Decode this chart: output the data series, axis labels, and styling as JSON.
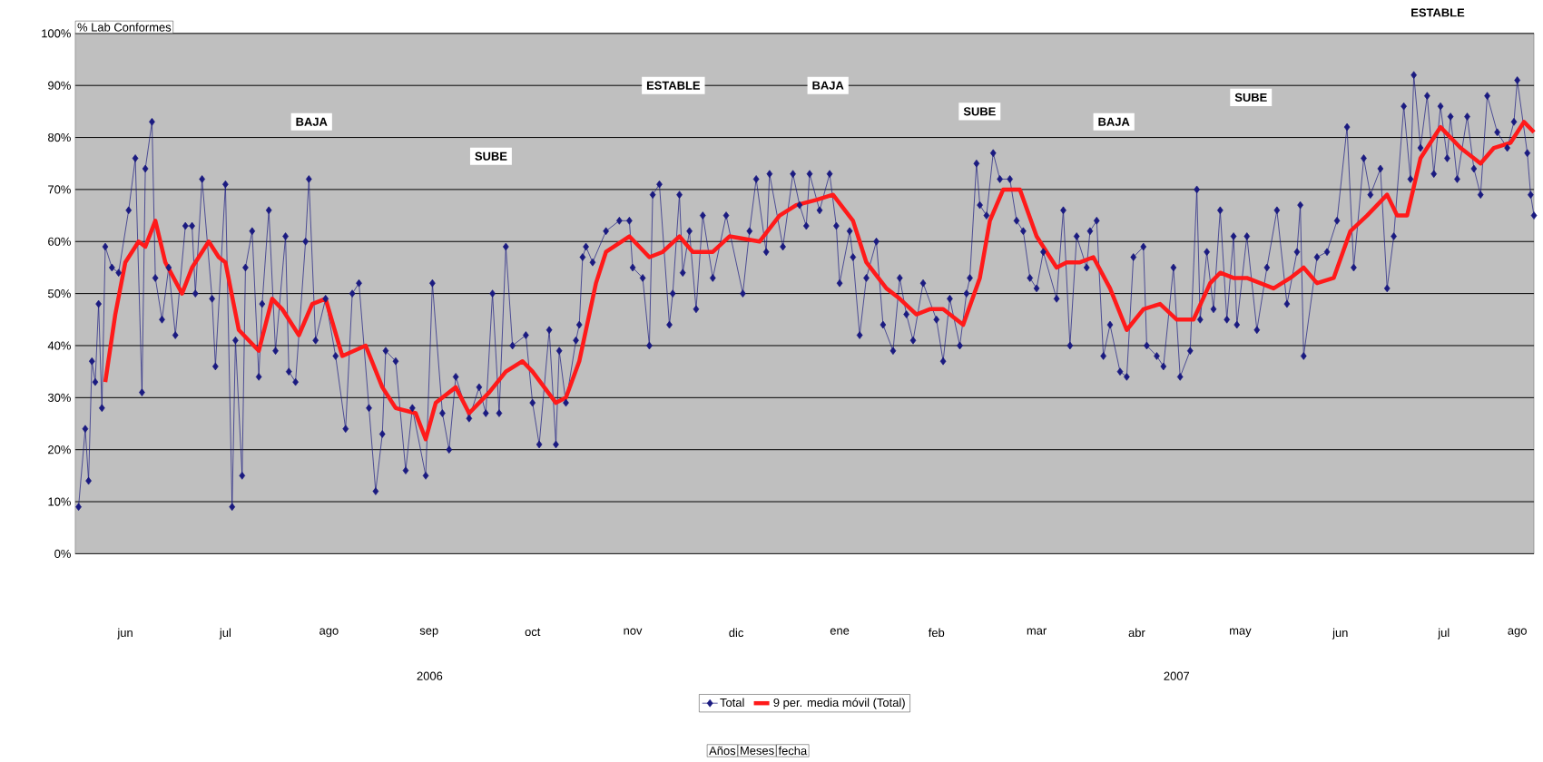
{
  "chart_data": {
    "type": "line",
    "ylabel": "% Lab Conformes",
    "xlim": [
      "2006-06-01",
      "2007-08-12"
    ],
    "xticks": [
      {
        "value": "2006-06-16",
        "label": "jun"
      },
      {
        "value": "2006-07-16",
        "label": "jul"
      },
      {
        "value": "2006-08-16",
        "label": "ago"
      },
      {
        "value": "2006-09-15",
        "label": "sep"
      },
      {
        "value": "2006-10-16",
        "label": "oct"
      },
      {
        "value": "2006-11-15",
        "label": "nov"
      },
      {
        "value": "2006-12-16",
        "label": "dic"
      },
      {
        "value": "2007-01-16",
        "label": "ene"
      },
      {
        "value": "2007-02-14",
        "label": "feb"
      },
      {
        "value": "2007-03-16",
        "label": "mar"
      },
      {
        "value": "2007-04-15",
        "label": "abr"
      },
      {
        "value": "2007-05-16",
        "label": "may"
      },
      {
        "value": "2007-06-15",
        "label": "jun"
      },
      {
        "value": "2007-07-16",
        "label": "jul"
      },
      {
        "value": "2007-08-07",
        "label": "ago"
      }
    ],
    "ylim": [
      0,
      100
    ],
    "yticks": [
      {
        "value": 0,
        "label": "0%"
      },
      {
        "value": 10,
        "label": "10%"
      },
      {
        "value": 20,
        "label": "20%"
      },
      {
        "value": 30,
        "label": "30%"
      },
      {
        "value": 40,
        "label": "40%"
      },
      {
        "value": 50,
        "label": "50%"
      },
      {
        "value": 60,
        "label": "60%"
      },
      {
        "value": 70,
        "label": "70%"
      },
      {
        "value": 80,
        "label": "80%"
      },
      {
        "value": 90,
        "label": "90%"
      },
      {
        "value": 100,
        "label": "100%"
      }
    ],
    "grid": "y",
    "legend": "bottom",
    "series": [
      {
        "name": "Total",
        "color": "#1a1a80",
        "marker": "diamond",
        "x": [
          "2006-06-02",
          "2006-06-04",
          "2006-06-05",
          "2006-06-06",
          "2006-06-07",
          "2006-06-08",
          "2006-06-09",
          "2006-06-10",
          "2006-06-12",
          "2006-06-14",
          "2006-06-17",
          "2006-06-19",
          "2006-06-21",
          "2006-06-22",
          "2006-06-24",
          "2006-06-25",
          "2006-06-27",
          "2006-06-29",
          "2006-07-01",
          "2006-07-04",
          "2006-07-06",
          "2006-07-07",
          "2006-07-09",
          "2006-07-12",
          "2006-07-13",
          "2006-07-16",
          "2006-07-18",
          "2006-07-19",
          "2006-07-21",
          "2006-07-22",
          "2006-07-24",
          "2006-07-26",
          "2006-07-27",
          "2006-07-29",
          "2006-07-31",
          "2006-08-03",
          "2006-08-04",
          "2006-08-06",
          "2006-08-09",
          "2006-08-10",
          "2006-08-12",
          "2006-08-15",
          "2006-08-18",
          "2006-08-21",
          "2006-08-23",
          "2006-08-25",
          "2006-08-28",
          "2006-08-30",
          "2006-09-01",
          "2006-09-02",
          "2006-09-05",
          "2006-09-08",
          "2006-09-10",
          "2006-09-14",
          "2006-09-16",
          "2006-09-19",
          "2006-09-21",
          "2006-09-23",
          "2006-09-27",
          "2006-09-30",
          "2006-10-02",
          "2006-10-04",
          "2006-10-06",
          "2006-10-08",
          "2006-10-10",
          "2006-10-14",
          "2006-10-16",
          "2006-10-18",
          "2006-10-21",
          "2006-10-23",
          "2006-10-24",
          "2006-10-26",
          "2006-10-29",
          "2006-10-30",
          "2006-10-31",
          "2006-11-01",
          "2006-11-03",
          "2006-11-07",
          "2006-11-11",
          "2006-11-14",
          "2006-11-15",
          "2006-11-18",
          "2006-11-20",
          "2006-11-21",
          "2006-11-23",
          "2006-11-26",
          "2006-11-27",
          "2006-11-29",
          "2006-11-30",
          "2006-12-02",
          "2006-12-04",
          "2006-12-06",
          "2006-12-09",
          "2006-12-13",
          "2006-12-18",
          "2006-12-20",
          "2006-12-22",
          "2006-12-25",
          "2006-12-26",
          "2006-12-30",
          "2007-01-02",
          "2007-01-04",
          "2007-01-06",
          "2007-01-07",
          "2007-01-10",
          "2007-01-13",
          "2007-01-15",
          "2007-01-16",
          "2007-01-19",
          "2007-01-20",
          "2007-01-22",
          "2007-01-24",
          "2007-01-27",
          "2007-01-29",
          "2007-02-01",
          "2007-02-03",
          "2007-02-05",
          "2007-02-07",
          "2007-02-10",
          "2007-02-14",
          "2007-02-16",
          "2007-02-18",
          "2007-02-21",
          "2007-02-23",
          "2007-02-24",
          "2007-02-26",
          "2007-02-27",
          "2007-03-01",
          "2007-03-03",
          "2007-03-05",
          "2007-03-08",
          "2007-03-10",
          "2007-03-12",
          "2007-03-14",
          "2007-03-16",
          "2007-03-18",
          "2007-03-22",
          "2007-03-24",
          "2007-03-26",
          "2007-03-28",
          "2007-03-31",
          "2007-04-01",
          "2007-04-03",
          "2007-04-05",
          "2007-04-07",
          "2007-04-10",
          "2007-04-12",
          "2007-04-14",
          "2007-04-17",
          "2007-04-18",
          "2007-04-21",
          "2007-04-23",
          "2007-04-26",
          "2007-04-28",
          "2007-05-01",
          "2007-05-03",
          "2007-05-04",
          "2007-05-06",
          "2007-05-08",
          "2007-05-10",
          "2007-05-12",
          "2007-05-14",
          "2007-05-15",
          "2007-05-18",
          "2007-05-21",
          "2007-05-24",
          "2007-05-27",
          "2007-05-30",
          "2007-06-02",
          "2007-06-03",
          "2007-06-04",
          "2007-06-08",
          "2007-06-11",
          "2007-06-14",
          "2007-06-17",
          "2007-06-19",
          "2007-06-22",
          "2007-06-24",
          "2007-06-27",
          "2007-06-29",
          "2007-07-01",
          "2007-07-04",
          "2007-07-06",
          "2007-07-07",
          "2007-07-09",
          "2007-07-11",
          "2007-07-13",
          "2007-07-15",
          "2007-07-17",
          "2007-07-18",
          "2007-07-20",
          "2007-07-23",
          "2007-07-25",
          "2007-07-27",
          "2007-07-29",
          "2007-08-01",
          "2007-08-04",
          "2007-08-06",
          "2007-08-07",
          "2007-08-10",
          "2007-08-11",
          "2007-08-12"
        ],
        "values": [
          9,
          24,
          14,
          37,
          33,
          48,
          28,
          59,
          55,
          54,
          66,
          76,
          31,
          74,
          83,
          53,
          45,
          55,
          42,
          63,
          63,
          50,
          72,
          49,
          36,
          71,
          9,
          41,
          15,
          55,
          62,
          34,
          48,
          66,
          39,
          61,
          35,
          33,
          60,
          72,
          41,
          49,
          38,
          24,
          50,
          52,
          28,
          12,
          23,
          39,
          37,
          16,
          28,
          15,
          52,
          27,
          20,
          34,
          26,
          32,
          27,
          50,
          27,
          59,
          40,
          42,
          29,
          21,
          43,
          21,
          39,
          29,
          41,
          44,
          57,
          59,
          56,
          62,
          64,
          64,
          55,
          53,
          40,
          69,
          71,
          44,
          50,
          69,
          54,
          62,
          47,
          65,
          53,
          65,
          50,
          62,
          72,
          58,
          73,
          59,
          73,
          67,
          63,
          73,
          66,
          73,
          63,
          52,
          62,
          57,
          42,
          53,
          60,
          44,
          39,
          53,
          46,
          41,
          52,
          45,
          37,
          49,
          40,
          50,
          53,
          75,
          67,
          65,
          77,
          72,
          72,
          64,
          62,
          53,
          51,
          58,
          49,
          66,
          40,
          61,
          55,
          62,
          64,
          38,
          44,
          35,
          34,
          57,
          59,
          40,
          38,
          36,
          55,
          34,
          39,
          70,
          45,
          58,
          47,
          66,
          45,
          61,
          44,
          61,
          43,
          55,
          66,
          48,
          58,
          67,
          38,
          57,
          58,
          64,
          82,
          55,
          76,
          69,
          74,
          51,
          61,
          86,
          72,
          92,
          78,
          88,
          73,
          86,
          76,
          84,
          72,
          84,
          74,
          69,
          88,
          81,
          78,
          83,
          91,
          77,
          69,
          65
        ]
      },
      {
        "name": "9 per. media móvil (Total)",
        "color": "#ff1a1a",
        "marker": "none",
        "x": [
          "2006-06-10",
          "2006-06-13",
          "2006-06-16",
          "2006-06-20",
          "2006-06-22",
          "2006-06-25",
          "2006-06-28",
          "2006-07-03",
          "2006-07-06",
          "2006-07-11",
          "2006-07-14",
          "2006-07-16",
          "2006-07-20",
          "2006-07-26",
          "2006-07-30",
          "2006-08-02",
          "2006-08-07",
          "2006-08-11",
          "2006-08-15",
          "2006-08-20",
          "2006-08-27",
          "2006-09-01",
          "2006-09-05",
          "2006-09-11",
          "2006-09-14",
          "2006-09-17",
          "2006-09-23",
          "2006-09-27",
          "2006-10-03",
          "2006-10-08",
          "2006-10-13",
          "2006-10-16",
          "2006-10-23",
          "2006-10-26",
          "2006-10-30",
          "2006-11-04",
          "2006-11-07",
          "2006-11-14",
          "2006-11-20",
          "2006-11-24",
          "2006-11-29",
          "2006-12-03",
          "2006-12-09",
          "2006-12-14",
          "2006-12-23",
          "2006-12-29",
          "2007-01-03",
          "2007-01-09",
          "2007-01-14",
          "2007-01-20",
          "2007-01-24",
          "2007-01-30",
          "2007-02-03",
          "2007-02-08",
          "2007-02-12",
          "2007-02-16",
          "2007-02-22",
          "2007-02-27",
          "2007-03-02",
          "2007-03-06",
          "2007-03-11",
          "2007-03-16",
          "2007-03-22",
          "2007-03-25",
          "2007-03-29",
          "2007-04-02",
          "2007-04-07",
          "2007-04-12",
          "2007-04-17",
          "2007-04-22",
          "2007-04-27",
          "2007-05-02",
          "2007-05-07",
          "2007-05-10",
          "2007-05-14",
          "2007-05-18",
          "2007-05-26",
          "2007-05-31",
          "2007-06-04",
          "2007-06-08",
          "2007-06-13",
          "2007-06-18",
          "2007-06-23",
          "2007-06-29",
          "2007-07-02",
          "2007-07-05",
          "2007-07-09",
          "2007-07-15",
          "2007-07-21",
          "2007-07-27",
          "2007-07-31",
          "2007-08-05",
          "2007-08-09",
          "2007-08-12"
        ],
        "values": [
          33,
          46,
          56,
          60,
          59,
          64,
          56,
          50,
          55,
          60,
          57,
          56,
          43,
          39,
          49,
          47,
          42,
          48,
          49,
          38,
          40,
          32,
          28,
          27,
          22,
          29,
          32,
          27,
          31,
          35,
          37,
          35,
          29,
          30,
          37,
          52,
          58,
          61,
          57,
          58,
          61,
          58,
          58,
          61,
          60,
          65,
          67,
          68,
          69,
          64,
          56,
          51,
          49,
          46,
          47,
          47,
          44,
          53,
          64,
          70,
          70,
          61,
          55,
          56,
          56,
          57,
          51,
          43,
          47,
          48,
          45,
          45,
          52,
          54,
          53,
          53,
          51,
          53,
          55,
          52,
          53,
          62,
          65,
          69,
          65,
          65,
          76,
          82,
          78,
          75,
          78,
          79,
          83,
          81
        ]
      }
    ],
    "annotations": [
      "BAJA",
      "SUBE",
      "ESTABLE",
      "BAJA",
      "SUBE",
      "BAJA",
      "SUBE",
      "ESTABLE",
      "2006",
      "2007",
      "Años",
      "Meses",
      "fecha"
    ]
  }
}
